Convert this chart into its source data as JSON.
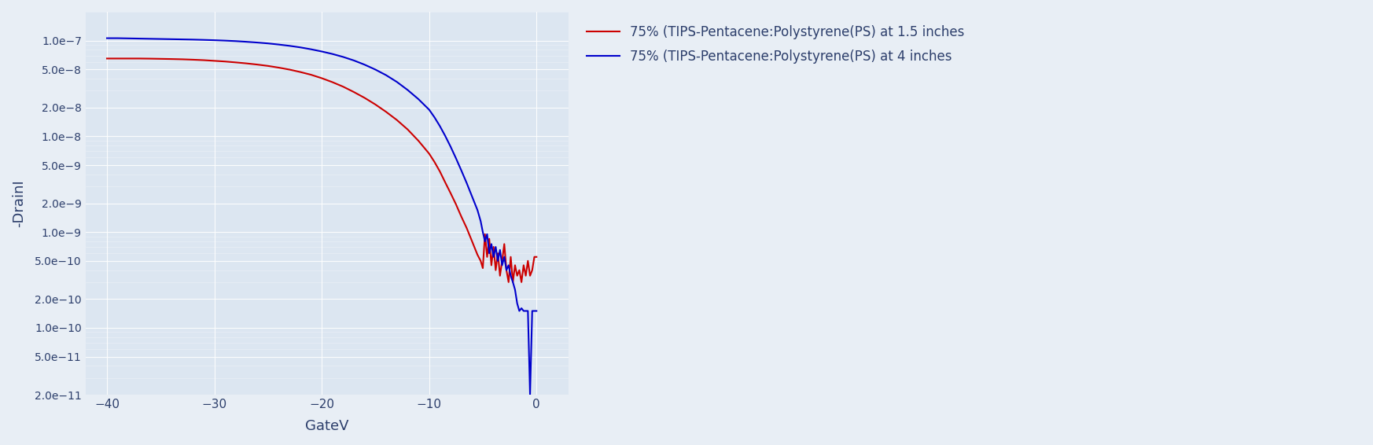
{
  "xlabel": "GateV",
  "ylabel": "-DrainI",
  "xlim": [
    -42,
    3
  ],
  "ylim": [
    2e-11,
    2e-07
  ],
  "background_color": "#dce6f1",
  "figure_background": "#e8eef5",
  "legend_labels": [
    "75% (TIPS-Pentacene:Polystyrene(PS) at 1.5 inches",
    "75% (TIPS-Pentacene:Polystyrene(PS) at 4 inches"
  ],
  "line_colors": [
    "#cc0000",
    "#0000cc"
  ],
  "red_x": [
    -40,
    -39,
    -38,
    -37,
    -36,
    -35,
    -34,
    -33,
    -32,
    -31,
    -30,
    -29,
    -28,
    -27,
    -26,
    -25,
    -24,
    -23,
    -22,
    -21,
    -20,
    -19,
    -18,
    -17,
    -16,
    -15,
    -14,
    -13,
    -12,
    -11,
    -10,
    -9.5,
    -9,
    -8.5,
    -8,
    -7.5,
    -7,
    -6.5,
    -6,
    -5.5,
    -5.2,
    -5.0,
    -4.8,
    -4.6,
    -4.4,
    -4.2,
    -4.0,
    -3.8,
    -3.6,
    -3.4,
    -3.2,
    -3.0,
    -2.8,
    -2.6,
    -2.4,
    -2.2,
    -2.0,
    -1.8,
    -1.6,
    -1.4,
    -1.2,
    -1.0,
    -0.8,
    -0.6,
    -0.4,
    -0.2,
    0.0
  ],
  "red_y": [
    6.5e-08,
    6.5e-08,
    6.5e-08,
    6.5e-08,
    6.48e-08,
    6.45e-08,
    6.42e-08,
    6.38e-08,
    6.32e-08,
    6.25e-08,
    6.15e-08,
    6.05e-08,
    5.92e-08,
    5.78e-08,
    5.62e-08,
    5.44e-08,
    5.22e-08,
    4.98e-08,
    4.7e-08,
    4.4e-08,
    4.05e-08,
    3.68e-08,
    3.3e-08,
    2.9e-08,
    2.52e-08,
    2.15e-08,
    1.8e-08,
    1.48e-08,
    1.18e-08,
    9e-09,
    6.6e-09,
    5.4e-09,
    4.3e-09,
    3.3e-09,
    2.55e-09,
    1.95e-09,
    1.45e-09,
    1.1e-09,
    8e-10,
    5.8e-10,
    5e-10,
    4.2e-10,
    9.5e-10,
    5.5e-10,
    8.5e-10,
    4.5e-10,
    7e-10,
    4e-10,
    6e-10,
    3.5e-10,
    5e-10,
    7.5e-10,
    4e-10,
    3e-10,
    5.5e-10,
    3e-10,
    4.5e-10,
    3.5e-10,
    4e-10,
    3e-10,
    4.5e-10,
    3.5e-10,
    5e-10,
    3.5e-10,
    4e-10,
    5.5e-10,
    5.5e-10
  ],
  "blue_x": [
    -40,
    -39,
    -38,
    -37,
    -36,
    -35,
    -34,
    -33,
    -32,
    -31,
    -30,
    -29,
    -28,
    -27,
    -26,
    -25,
    -24,
    -23,
    -22,
    -21,
    -20,
    -19,
    -18,
    -17,
    -16,
    -15,
    -14,
    -13,
    -12,
    -11,
    -10,
    -9.5,
    -9,
    -8.5,
    -8,
    -7.5,
    -7,
    -6.5,
    -6,
    -5.5,
    -5.2,
    -5.0,
    -4.8,
    -4.6,
    -4.4,
    -4.2,
    -4.0,
    -3.8,
    -3.6,
    -3.4,
    -3.2,
    -3.0,
    -2.8,
    -2.6,
    -2.4,
    -2.2,
    -2.0,
    -1.8,
    -1.6,
    -1.4,
    -1.2,
    -1.0,
    -0.8,
    -0.6,
    -0.4,
    -0.2,
    0.0
  ],
  "blue_y": [
    1.06e-07,
    1.06e-07,
    1.055e-07,
    1.05e-07,
    1.045e-07,
    1.04e-07,
    1.035e-07,
    1.03e-07,
    1.025e-07,
    1.018e-07,
    1.01e-07,
    1e-07,
    9.88e-08,
    9.72e-08,
    9.55e-08,
    9.35e-08,
    9.1e-08,
    8.82e-08,
    8.5e-08,
    8.12e-08,
    7.7e-08,
    7.25e-08,
    6.75e-08,
    6.2e-08,
    5.6e-08,
    4.98e-08,
    4.35e-08,
    3.7e-08,
    3.05e-08,
    2.45e-08,
    1.9e-08,
    1.58e-08,
    1.28e-08,
    1.01e-08,
    7.8e-09,
    5.9e-09,
    4.4e-09,
    3.25e-09,
    2.35e-09,
    1.7e-09,
    1.3e-09,
    1e-09,
    8e-10,
    9.5e-10,
    6e-10,
    7.5e-10,
    5.5e-10,
    7e-10,
    5e-10,
    6.5e-10,
    4.5e-10,
    5.5e-10,
    4e-10,
    4.5e-10,
    3.5e-10,
    3e-10,
    2.5e-10,
    1.8e-10,
    1.5e-10,
    1.6e-10,
    1.5e-10,
    1.5e-10,
    1.5e-10,
    2e-11,
    1.5e-10,
    1.5e-10,
    1.5e-10
  ]
}
